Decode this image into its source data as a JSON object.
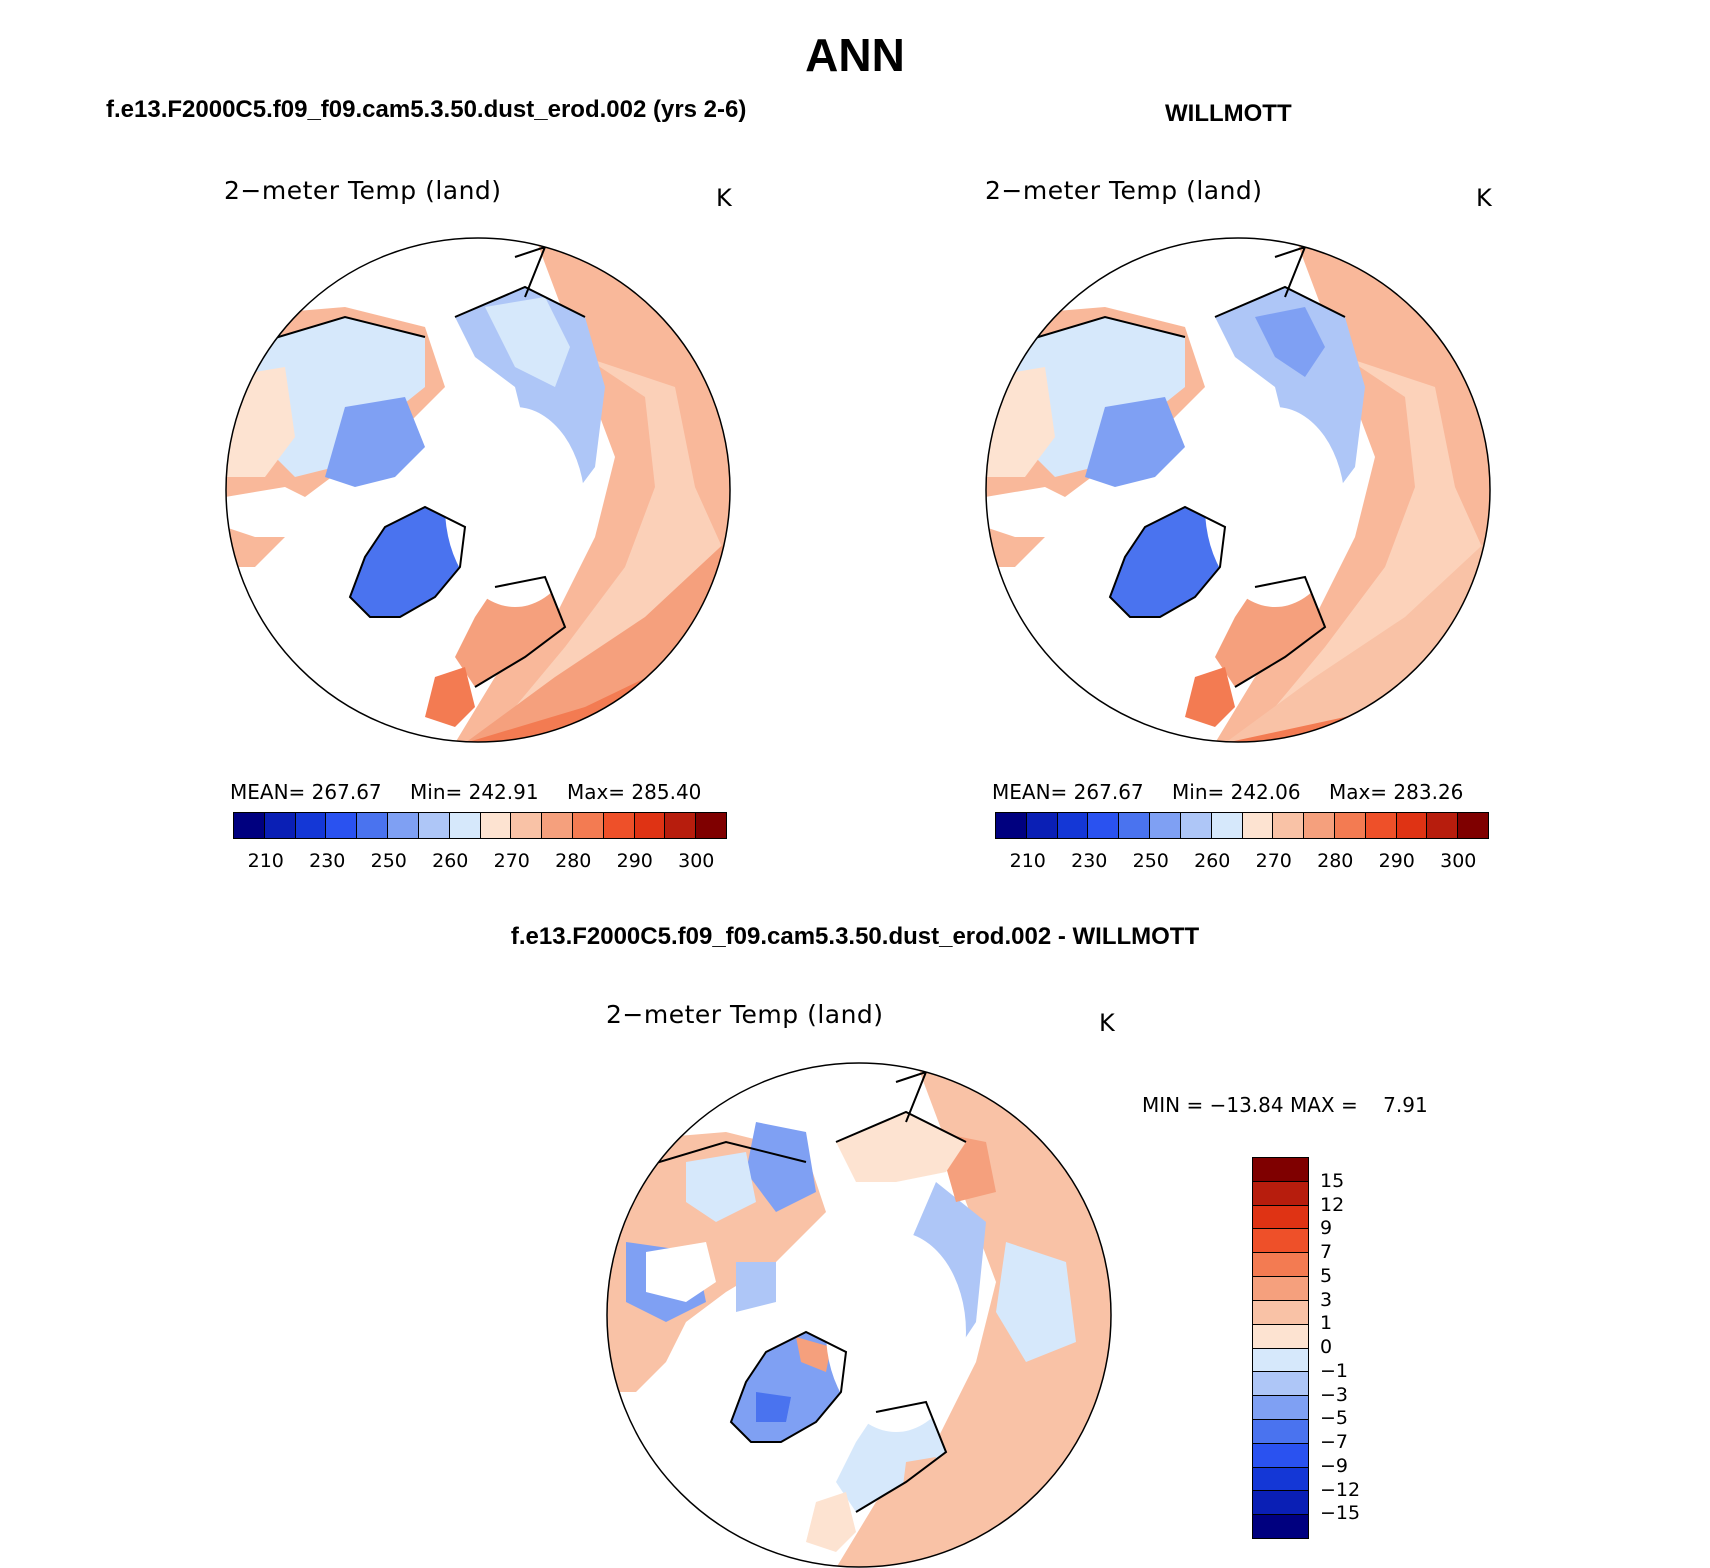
{
  "figure": {
    "season": "ANN"
  },
  "panels": [
    {
      "id": "model",
      "header": "f.e13.F2000C5.f09_f09.cam5.3.50.dust_erod.002 (yrs 2-6)",
      "title": "2−meter Temp (land)",
      "units": "K",
      "stats": {
        "mean_label": "MEAN=",
        "mean": "267.67",
        "min_label": "Min=",
        "min": "242.91",
        "max_label": "Max=",
        "max": "285.40"
      }
    },
    {
      "id": "obs",
      "header": "WILLMOTT",
      "title": "2−meter Temp (land)",
      "units": "K",
      "stats": {
        "mean_label": "MEAN=",
        "mean": "267.67",
        "min_label": "Min=",
        "min": "242.06",
        "max_label": "Max=",
        "max": "283.26"
      }
    },
    {
      "id": "diff",
      "header": "f.e13.F2000C5.f09_f09.cam5.3.50.dust_erod.002 - WILLMOTT",
      "title": "2−meter Temp (land)",
      "units": "K",
      "stats_text": "MIN = −13.84 MAX =    7.91"
    }
  ],
  "colorbar_abs": {
    "colors": [
      "#00007f",
      "#0a1fb5",
      "#1437d6",
      "#2a52f0",
      "#4a73ef",
      "#7fa0f3",
      "#aec6f7",
      "#d6e8fb",
      "#fde3d1",
      "#f9c2a6",
      "#f5a07d",
      "#f37b52",
      "#ee5029",
      "#df3314",
      "#b71d0d",
      "#7f0000"
    ],
    "tick_labels": [
      "210",
      "230",
      "250",
      "260",
      "270",
      "280",
      "290",
      "300"
    ]
  },
  "colorbar_diff": {
    "colors": [
      "#7f0000",
      "#b71d0d",
      "#df3314",
      "#ee5029",
      "#f37b52",
      "#f5a07d",
      "#f9c2a6",
      "#fde3d1",
      "#d6e8fb",
      "#aec6f7",
      "#7fa0f3",
      "#4a73ef",
      "#2a52f0",
      "#1437d6",
      "#0a1fb5",
      "#00007f"
    ],
    "tick_labels": [
      "15",
      "12",
      "9",
      "7",
      "5",
      "3",
      "1",
      "0",
      "−1",
      "−3",
      "−5",
      "−7",
      "−9",
      "−12",
      "−15"
    ]
  },
  "colors": {
    "land_warm": "#f9b89a",
    "land_mid": "#fde3d1",
    "land_cold": "#aec6f7",
    "land_ice": "#4a73ef",
    "land_hot": "#f37b52"
  }
}
